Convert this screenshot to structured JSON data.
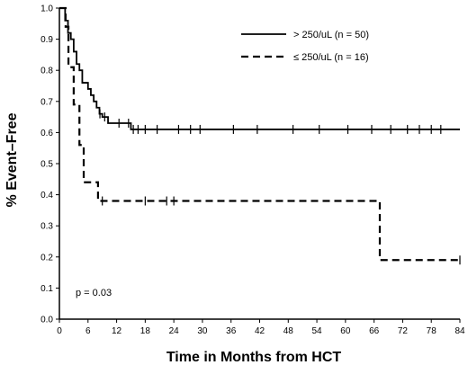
{
  "chart_data": {
    "type": "line",
    "title": "",
    "xlabel": "Time in Months from HCT",
    "ylabel": "% Event–Free",
    "xlim": [
      0,
      84
    ],
    "ylim": [
      0,
      1.0
    ],
    "x_ticks": [
      "0",
      "6",
      "12",
      "18",
      "24",
      "30",
      "36",
      "42",
      "48",
      "54",
      "60",
      "66",
      "72",
      "78",
      "84"
    ],
    "y_ticks": [
      "0.0",
      "0.1",
      "0.2",
      "0.3",
      "0.4",
      "0.5",
      "0.6",
      "0.7",
      "0.8",
      "0.9",
      "1.0"
    ],
    "grid": false,
    "legend_position": "top-right",
    "annotation": "p = 0.03",
    "series": [
      {
        "name": "> 250/uL (n = 50)",
        "style": "solid",
        "color": "#000000",
        "steps": [
          [
            0,
            1.0
          ],
          [
            1.2,
            0.96
          ],
          [
            1.8,
            0.92
          ],
          [
            2.4,
            0.9
          ],
          [
            3.0,
            0.86
          ],
          [
            3.6,
            0.82
          ],
          [
            4.2,
            0.8
          ],
          [
            4.8,
            0.76
          ],
          [
            6.0,
            0.74
          ],
          [
            6.6,
            0.72
          ],
          [
            7.2,
            0.7
          ],
          [
            7.8,
            0.68
          ],
          [
            8.4,
            0.66
          ],
          [
            9.0,
            0.65
          ],
          [
            10.2,
            0.63
          ],
          [
            15.0,
            0.61
          ],
          [
            84.0,
            0.61
          ]
        ],
        "censor_x": [
          8.5,
          9.5,
          12.5,
          14.5,
          15.5,
          16.5,
          18.0,
          20.5,
          25.0,
          27.5,
          29.5,
          36.5,
          41.5,
          49.0,
          54.5,
          60.5,
          65.5,
          69.5,
          73.0,
          75.5,
          78.0,
          80.0
        ]
      },
      {
        "name": "≤ 250/uL (n = 16)",
        "style": "dashed",
        "color": "#000000",
        "steps": [
          [
            0,
            1.0
          ],
          [
            1.3,
            0.94
          ],
          [
            1.9,
            0.81
          ],
          [
            3.0,
            0.69
          ],
          [
            4.2,
            0.56
          ],
          [
            5.1,
            0.44
          ],
          [
            8.1,
            0.38
          ],
          [
            67.2,
            0.19
          ],
          [
            84.0,
            0.19
          ]
        ],
        "censor_x": [
          9.0,
          18.0,
          22.5,
          24.0,
          84.0
        ]
      }
    ]
  }
}
